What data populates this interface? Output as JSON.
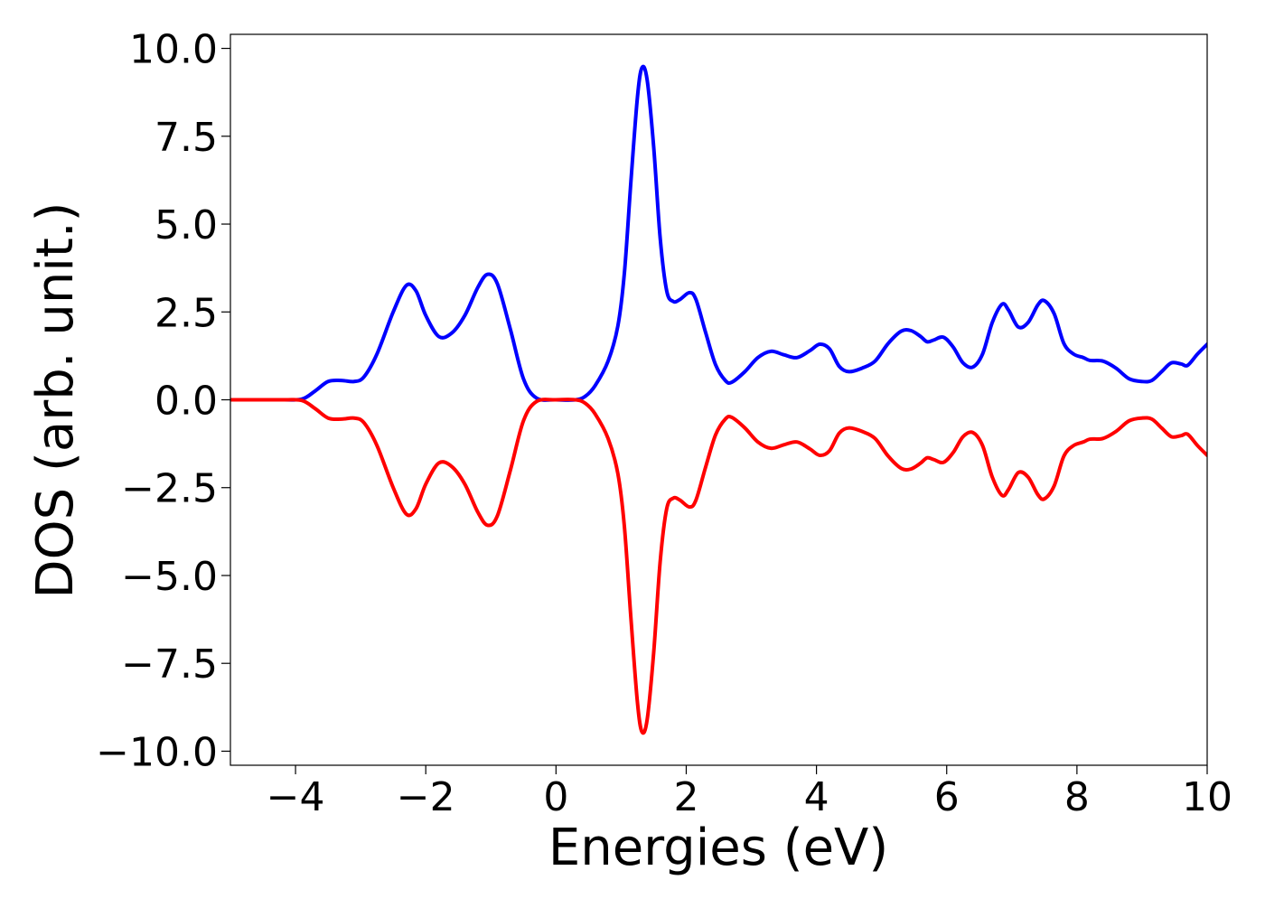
{
  "chart_data": {
    "type": "line",
    "title": "",
    "xlabel": "Energies (eV)",
    "ylabel": "DOS (arb. unit.)",
    "xlim": [
      -5,
      10
    ],
    "ylim": [
      -10.4,
      10.4
    ],
    "xticks": [
      -4,
      -2,
      0,
      2,
      4,
      6,
      8,
      10
    ],
    "xtick_labels": [
      "−4",
      "−2",
      "0",
      "2",
      "4",
      "6",
      "8",
      "10"
    ],
    "yticks": [
      10,
      7.5,
      5,
      2.5,
      0,
      -2.5,
      -5,
      -7.5,
      -10
    ],
    "ytick_labels": [
      "10.0",
      "7.5",
      "5.0",
      "2.5",
      "0.0",
      "−2.5",
      "−5.0",
      "−7.5",
      "−10.0"
    ],
    "grid": false,
    "legend": "none",
    "series": [
      {
        "color": "#0000ff",
        "points": [
          [
            -5,
            0
          ],
          [
            -4.2,
            0
          ],
          [
            -3.9,
            0.02
          ],
          [
            -3.7,
            0.25
          ],
          [
            -3.5,
            0.52
          ],
          [
            -3.3,
            0.55
          ],
          [
            -3.1,
            0.52
          ],
          [
            -2.95,
            0.65
          ],
          [
            -2.75,
            1.3
          ],
          [
            -2.5,
            2.5
          ],
          [
            -2.3,
            3.25
          ],
          [
            -2.15,
            3.1
          ],
          [
            -2.0,
            2.4
          ],
          [
            -1.8,
            1.8
          ],
          [
            -1.6,
            1.9
          ],
          [
            -1.4,
            2.4
          ],
          [
            -1.2,
            3.2
          ],
          [
            -1.05,
            3.57
          ],
          [
            -0.9,
            3.3
          ],
          [
            -0.7,
            2.0
          ],
          [
            -0.5,
            0.6
          ],
          [
            -0.3,
            0.05
          ],
          [
            0,
            0
          ],
          [
            0.3,
            0
          ],
          [
            0.45,
            0.1
          ],
          [
            0.6,
            0.4
          ],
          [
            0.8,
            1.1
          ],
          [
            0.95,
            2.1
          ],
          [
            1.05,
            3.6
          ],
          [
            1.15,
            6.2
          ],
          [
            1.25,
            8.6
          ],
          [
            1.32,
            9.45
          ],
          [
            1.4,
            9.1
          ],
          [
            1.5,
            7.2
          ],
          [
            1.6,
            4.6
          ],
          [
            1.7,
            3.1
          ],
          [
            1.8,
            2.8
          ],
          [
            1.9,
            2.85
          ],
          [
            2.05,
            3.05
          ],
          [
            2.15,
            2.85
          ],
          [
            2.3,
            1.9
          ],
          [
            2.45,
            1.0
          ],
          [
            2.6,
            0.55
          ],
          [
            2.7,
            0.5
          ],
          [
            2.9,
            0.8
          ],
          [
            3.1,
            1.2
          ],
          [
            3.3,
            1.38
          ],
          [
            3.5,
            1.28
          ],
          [
            3.7,
            1.2
          ],
          [
            3.9,
            1.4
          ],
          [
            4.05,
            1.58
          ],
          [
            4.2,
            1.45
          ],
          [
            4.35,
            0.95
          ],
          [
            4.5,
            0.8
          ],
          [
            4.7,
            0.9
          ],
          [
            4.9,
            1.1
          ],
          [
            5.1,
            1.6
          ],
          [
            5.3,
            1.95
          ],
          [
            5.45,
            1.97
          ],
          [
            5.6,
            1.8
          ],
          [
            5.7,
            1.65
          ],
          [
            5.8,
            1.7
          ],
          [
            5.95,
            1.78
          ],
          [
            6.1,
            1.5
          ],
          [
            6.25,
            1.05
          ],
          [
            6.4,
            0.93
          ],
          [
            6.55,
            1.3
          ],
          [
            6.7,
            2.2
          ],
          [
            6.85,
            2.72
          ],
          [
            6.95,
            2.55
          ],
          [
            7.1,
            2.07
          ],
          [
            7.25,
            2.2
          ],
          [
            7.4,
            2.7
          ],
          [
            7.5,
            2.82
          ],
          [
            7.65,
            2.45
          ],
          [
            7.8,
            1.6
          ],
          [
            7.95,
            1.3
          ],
          [
            8.1,
            1.2
          ],
          [
            8.2,
            1.12
          ],
          [
            8.4,
            1.1
          ],
          [
            8.6,
            0.9
          ],
          [
            8.8,
            0.6
          ],
          [
            9.0,
            0.52
          ],
          [
            9.15,
            0.55
          ],
          [
            9.3,
            0.8
          ],
          [
            9.45,
            1.05
          ],
          [
            9.6,
            1.02
          ],
          [
            9.7,
            0.98
          ],
          [
            9.85,
            1.3
          ],
          [
            10,
            1.58
          ]
        ]
      },
      {
        "color": "#ff0000",
        "points": [
          [
            -5,
            0
          ],
          [
            -4.2,
            0
          ],
          [
            -3.9,
            -0.02
          ],
          [
            -3.7,
            -0.25
          ],
          [
            -3.5,
            -0.52
          ],
          [
            -3.3,
            -0.55
          ],
          [
            -3.1,
            -0.52
          ],
          [
            -2.95,
            -0.65
          ],
          [
            -2.75,
            -1.3
          ],
          [
            -2.5,
            -2.5
          ],
          [
            -2.3,
            -3.25
          ],
          [
            -2.15,
            -3.1
          ],
          [
            -2.0,
            -2.4
          ],
          [
            -1.8,
            -1.8
          ],
          [
            -1.6,
            -1.9
          ],
          [
            -1.4,
            -2.4
          ],
          [
            -1.2,
            -3.2
          ],
          [
            -1.05,
            -3.57
          ],
          [
            -0.9,
            -3.3
          ],
          [
            -0.7,
            -2.0
          ],
          [
            -0.5,
            -0.6
          ],
          [
            -0.3,
            -0.05
          ],
          [
            0,
            0
          ],
          [
            0.3,
            0
          ],
          [
            0.45,
            -0.1
          ],
          [
            0.6,
            -0.4
          ],
          [
            0.8,
            -1.1
          ],
          [
            0.95,
            -2.1
          ],
          [
            1.05,
            -3.6
          ],
          [
            1.15,
            -6.2
          ],
          [
            1.25,
            -8.6
          ],
          [
            1.32,
            -9.45
          ],
          [
            1.4,
            -9.1
          ],
          [
            1.5,
            -7.2
          ],
          [
            1.6,
            -4.6
          ],
          [
            1.7,
            -3.1
          ],
          [
            1.8,
            -2.8
          ],
          [
            1.9,
            -2.85
          ],
          [
            2.05,
            -3.05
          ],
          [
            2.15,
            -2.85
          ],
          [
            2.3,
            -1.9
          ],
          [
            2.45,
            -1.0
          ],
          [
            2.6,
            -0.55
          ],
          [
            2.7,
            -0.5
          ],
          [
            2.9,
            -0.8
          ],
          [
            3.1,
            -1.2
          ],
          [
            3.3,
            -1.38
          ],
          [
            3.5,
            -1.28
          ],
          [
            3.7,
            -1.2
          ],
          [
            3.9,
            -1.4
          ],
          [
            4.05,
            -1.58
          ],
          [
            4.2,
            -1.45
          ],
          [
            4.35,
            -0.95
          ],
          [
            4.5,
            -0.8
          ],
          [
            4.7,
            -0.9
          ],
          [
            4.9,
            -1.1
          ],
          [
            5.1,
            -1.6
          ],
          [
            5.3,
            -1.95
          ],
          [
            5.45,
            -1.97
          ],
          [
            5.6,
            -1.8
          ],
          [
            5.7,
            -1.65
          ],
          [
            5.8,
            -1.7
          ],
          [
            5.95,
            -1.78
          ],
          [
            6.1,
            -1.5
          ],
          [
            6.25,
            -1.05
          ],
          [
            6.4,
            -0.93
          ],
          [
            6.55,
            -1.3
          ],
          [
            6.7,
            -2.2
          ],
          [
            6.85,
            -2.72
          ],
          [
            6.95,
            -2.55
          ],
          [
            7.1,
            -2.07
          ],
          [
            7.25,
            -2.2
          ],
          [
            7.4,
            -2.7
          ],
          [
            7.5,
            -2.82
          ],
          [
            7.65,
            -2.45
          ],
          [
            7.8,
            -1.6
          ],
          [
            7.95,
            -1.3
          ],
          [
            8.1,
            -1.2
          ],
          [
            8.2,
            -1.12
          ],
          [
            8.4,
            -1.1
          ],
          [
            8.6,
            -0.9
          ],
          [
            8.8,
            -0.6
          ],
          [
            9.0,
            -0.52
          ],
          [
            9.15,
            -0.55
          ],
          [
            9.3,
            -0.8
          ],
          [
            9.45,
            -1.05
          ],
          [
            9.6,
            -1.02
          ],
          [
            9.7,
            -0.98
          ],
          [
            9.85,
            -1.3
          ],
          [
            10,
            -1.58
          ]
        ]
      }
    ]
  }
}
